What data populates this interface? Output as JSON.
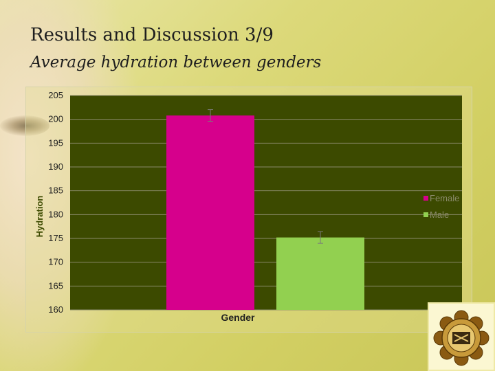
{
  "slide": {
    "title": "Results and Discussion 3/9",
    "subtitle": "Average hydration between genders"
  },
  "colors": {
    "plot_background": "#3c4a00",
    "female": "#d6008c",
    "male": "#92d050",
    "gridline": "#8a8a6a"
  },
  "logo": {
    "icon": "university-emblem-icon"
  },
  "chart_data": {
    "type": "bar",
    "xlabel": "Gender",
    "ylabel": "Hydration",
    "ylim": [
      160,
      205
    ],
    "yticks": [
      160,
      165,
      170,
      175,
      180,
      185,
      190,
      195,
      200,
      205
    ],
    "grid": true,
    "legend_position": "right",
    "series": [
      {
        "name": "Female",
        "value": 200.8,
        "error": 0.8,
        "color": "#d6008c"
      },
      {
        "name": "Male",
        "value": 175.2,
        "error": 0.8,
        "color": "#92d050"
      }
    ]
  }
}
